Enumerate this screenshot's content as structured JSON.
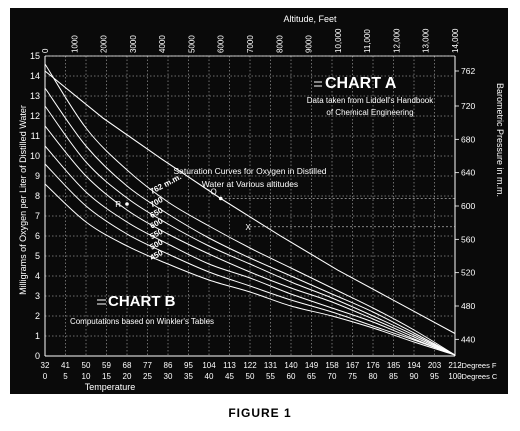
{
  "figure_caption": "FIGURE 1",
  "chart_a": {
    "title": "CHART A",
    "note_line1": "Data taken from Liddell's Handbook",
    "note_line2": "of Chemical Engineering",
    "point_labels": [
      "O",
      "X"
    ]
  },
  "chart_b": {
    "title": "CHART B",
    "note": "Computations based on Winkler's Tables",
    "curves_label_line1": "Saturation Curves for Oxygen in Distilled",
    "curves_label_line2": "Water at Various altitudes",
    "point_label": "R"
  },
  "chart_data": [
    {
      "type": "line",
      "title": "CHART B",
      "xlabel": "Temperature",
      "ylabel": "Milligrams of Oxygen per Liter of Distilled Water",
      "ylim": [
        0,
        15
      ],
      "y_ticks": [
        "0",
        "1",
        "2",
        "3",
        "4",
        "5",
        "6",
        "7",
        "8",
        "9",
        "10",
        "11",
        "12",
        "13",
        "14",
        "15"
      ],
      "x_ticks_fahrenheit": [
        "32",
        "41",
        "50",
        "59",
        "68",
        "77",
        "86",
        "95",
        "104",
        "113",
        "122",
        "131",
        "140",
        "149",
        "158",
        "167",
        "176",
        "185",
        "194",
        "203",
        "212"
      ],
      "x_ticks_celsius": [
        "0",
        "5",
        "10",
        "15",
        "20",
        "25",
        "30",
        "35",
        "40",
        "45",
        "50",
        "55",
        "60",
        "65",
        "70",
        "75",
        "80",
        "85",
        "90",
        "95",
        "100"
      ],
      "x_unit_fahrenheit": "-Degrees F",
      "x_unit_celsius": "-Degrees C",
      "x_celsius": [
        0,
        10,
        20,
        30,
        40,
        50,
        60,
        70,
        80,
        90,
        100
      ],
      "series": [
        {
          "name": "762 m.m.",
          "values": [
            14.6,
            11.4,
            9.3,
            7.7,
            6.5,
            5.4,
            4.4,
            3.4,
            2.4,
            1.3,
            0.05
          ]
        },
        {
          "name": "700",
          "values": [
            13.4,
            10.5,
            8.5,
            7.1,
            5.9,
            4.9,
            4.0,
            3.1,
            2.2,
            1.15,
            0.05
          ]
        },
        {
          "name": "650",
          "values": [
            12.5,
            9.7,
            7.9,
            6.6,
            5.5,
            4.6,
            3.7,
            2.9,
            2.0,
            1.05,
            0.05
          ]
        },
        {
          "name": "600",
          "values": [
            11.5,
            9.0,
            7.3,
            6.1,
            5.1,
            4.2,
            3.4,
            2.7,
            1.85,
            0.95,
            0.05
          ]
        },
        {
          "name": "550",
          "values": [
            10.5,
            8.2,
            6.7,
            5.6,
            4.6,
            3.9,
            3.1,
            2.4,
            1.7,
            0.85,
            0.05
          ]
        },
        {
          "name": "500",
          "values": [
            9.6,
            7.5,
            6.1,
            5.1,
            4.2,
            3.5,
            2.8,
            2.2,
            1.5,
            0.8,
            0.05
          ]
        },
        {
          "name": "450",
          "values": [
            8.6,
            6.7,
            5.5,
            4.6,
            3.8,
            3.2,
            2.5,
            2.0,
            1.4,
            0.7,
            0.05
          ]
        }
      ],
      "point_R": {
        "x": 20,
        "y": 7.6
      }
    },
    {
      "type": "line",
      "title": "CHART A",
      "xlabel": "Altitude, Feet",
      "ylabel": "Barometric Pressure in m.m.",
      "x_ticks": [
        "0",
        "1000",
        "2000",
        "3000",
        "4000",
        "5000",
        "6000",
        "7000",
        "8000",
        "9000",
        "10,000",
        "11,000",
        "12,000",
        "13,000",
        "14,000"
      ],
      "xlim": [
        0,
        14000
      ],
      "y_ticks": [
        "440",
        "480",
        "520",
        "560",
        "600",
        "640",
        "680",
        "720",
        "762"
      ],
      "ylim": [
        420,
        780
      ],
      "x": [
        0,
        2000,
        4000,
        6000,
        8000,
        10000,
        12000,
        14000
      ],
      "values": [
        762,
        705,
        656,
        609,
        565,
        523,
        485,
        447
      ],
      "point_O": {
        "x": 6000,
        "y": 609
      },
      "point_X": {
        "x": 7000,
        "y": 575
      }
    }
  ]
}
